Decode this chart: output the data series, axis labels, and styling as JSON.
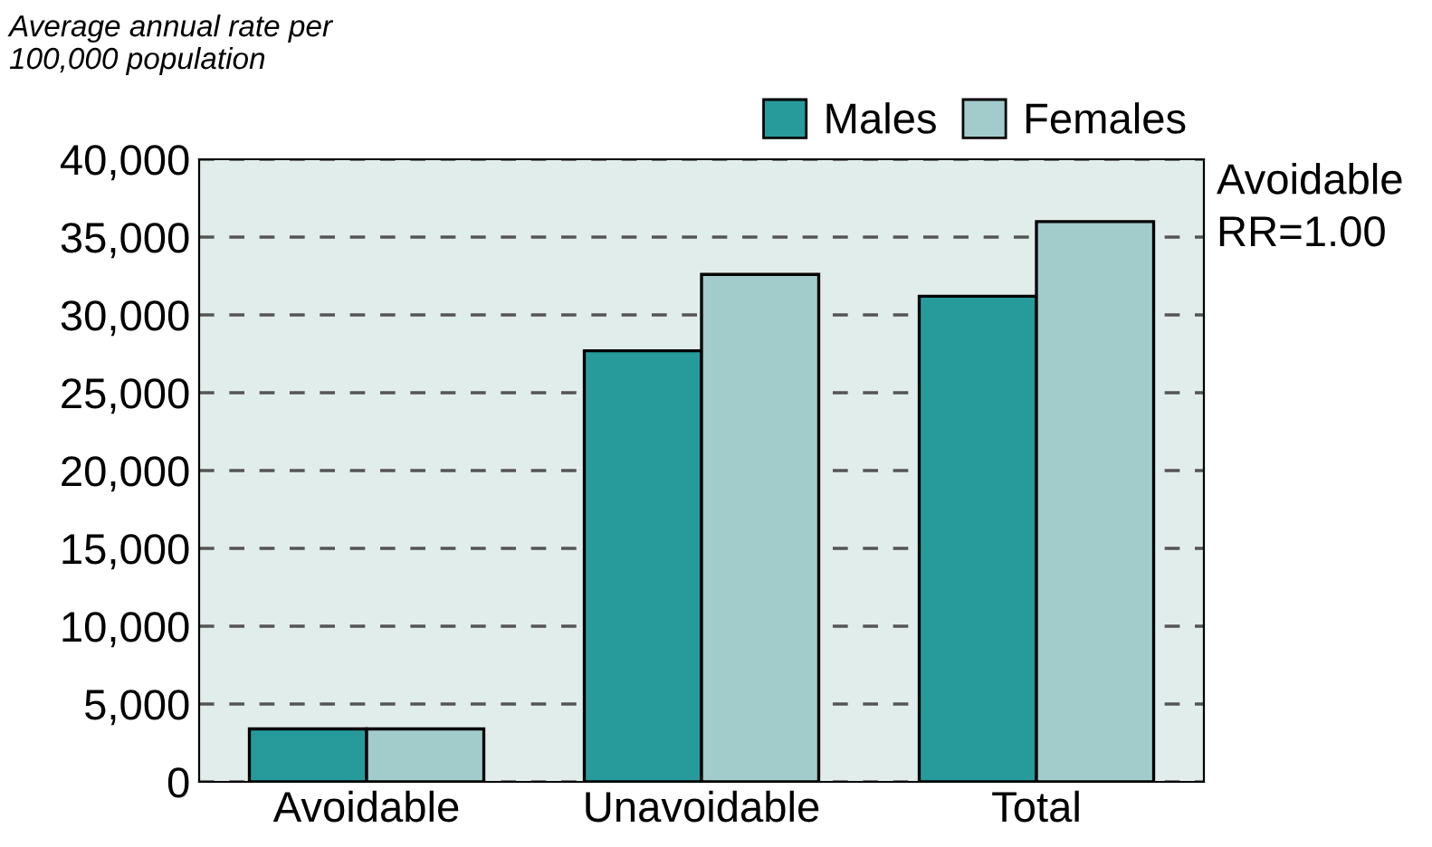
{
  "chart_data": {
    "type": "bar",
    "ylabel": "Average annual rate per\n100,000 population",
    "categories": [
      "Avoidable",
      "Unavoidable",
      "Total"
    ],
    "series": [
      {
        "name": "Males",
        "color": "#279b9c",
        "values": [
          3400,
          27700,
          31200
        ]
      },
      {
        "name": "Females",
        "color": "#a1cccb",
        "values": [
          3400,
          32600,
          36000
        ]
      }
    ],
    "ylim": [
      0,
      40000
    ],
    "yticks": [
      {
        "value": 0,
        "label": "0"
      },
      {
        "value": 5000,
        "label": "5,000"
      },
      {
        "value": 10000,
        "label": "10,000"
      },
      {
        "value": 15000,
        "label": "15,000"
      },
      {
        "value": 20000,
        "label": "20,000"
      },
      {
        "value": 25000,
        "label": "25,000"
      },
      {
        "value": 30000,
        "label": "30,000"
      },
      {
        "value": 35000,
        "label": "35,000"
      },
      {
        "value": 40000,
        "label": "40,000"
      }
    ],
    "grid": "y",
    "legend": "top right",
    "annotations": [
      "Avoidable\nRR=1.00"
    ]
  }
}
